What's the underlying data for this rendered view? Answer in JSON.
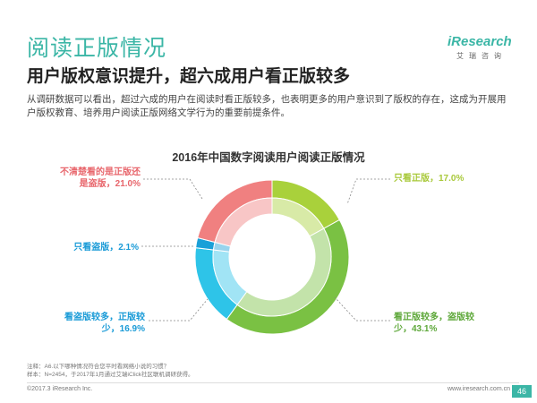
{
  "header": {
    "title": "阅读正版情况",
    "subtitle": "用户版权意识提升，超六成用户看正版较多",
    "description": "从调研数据可以看出，超过六成的用户在阅读时看正版较多，也表明更多的用户意识到了版权的存在，这成为开展用户版权教育、培养用户阅读正版网络文学行为的重要前提条件。"
  },
  "logo": {
    "text": "iResearch",
    "sub": "艾瑞咨询"
  },
  "chart_data": {
    "type": "pie",
    "title": "2016年中国数字阅读用户阅读正版情况",
    "unit": "%",
    "slices": [
      {
        "label": "只看正版",
        "value": 17.0,
        "display": "只看正版，17.0%",
        "color": "#a9d13b"
      },
      {
        "label": "看正版较多，盗版较少",
        "value": 43.1,
        "display": "看正版较多，盗版较少，43.1%",
        "color": "#7ac143"
      },
      {
        "label": "看盗版较多，正版较少",
        "value": 16.9,
        "display": "看盗版较多，正版较少，16.9%",
        "color": "#2ec4e8"
      },
      {
        "label": "只看盗版",
        "value": 2.1,
        "display": "只看盗版，2.1%",
        "color": "#1aa0d8"
      },
      {
        "label": "不清楚看的是正版还是盗版",
        "value": 21.0,
        "display": "不清楚看的是正版还是盗版，21.0%",
        "color": "#f08080"
      }
    ]
  },
  "footer": {
    "note1": "注释：A6.以下哪种情况符合您平时看网络小说的习惯？",
    "note2": "样本：N=2454，于2017年1月通过艾瑞iClick社区联机调研获得。",
    "copyright": "©2017.3 iResearch Inc.",
    "site": "www.iresearch.com.cn",
    "page": "46"
  }
}
